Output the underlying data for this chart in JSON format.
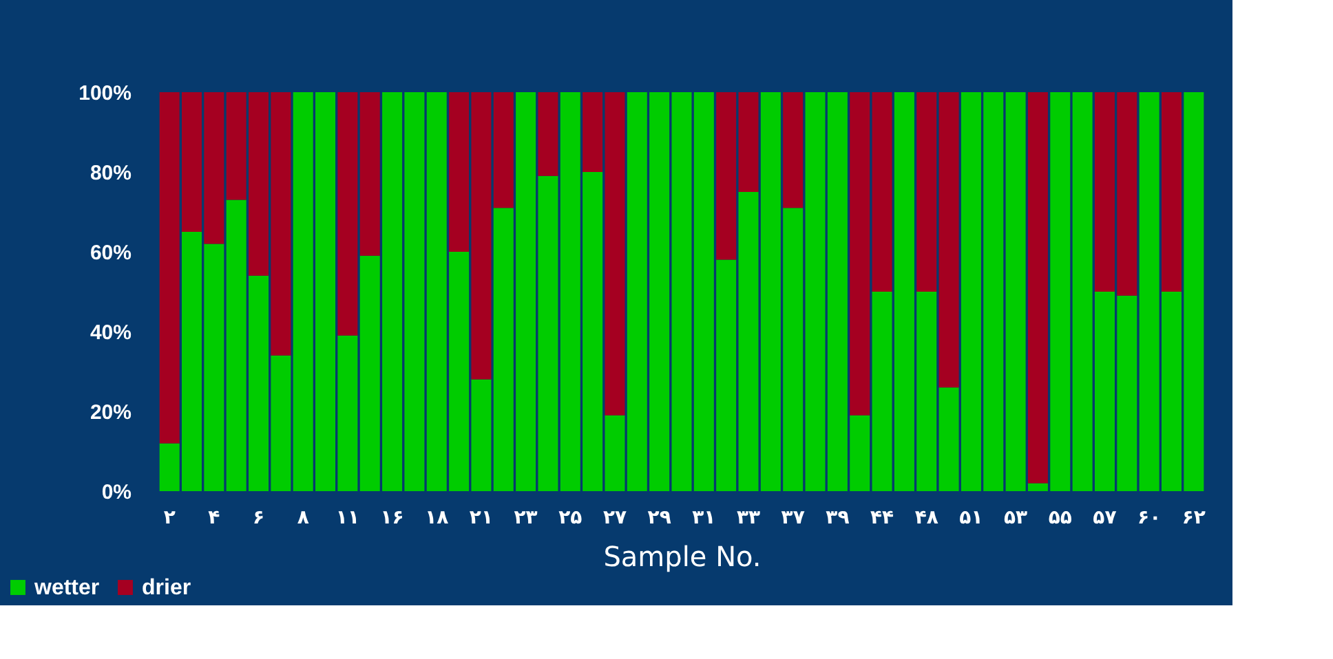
{
  "chart_data": {
    "type": "bar",
    "stacked": true,
    "xlabel": "Sample No.",
    "categories": [
      "۲",
      null,
      "۴",
      null,
      "۶",
      null,
      "۸",
      null,
      "۱۱",
      null,
      "۱۶",
      null,
      "۱۸",
      null,
      "۲۱",
      null,
      "۲۳",
      null,
      "۲۵",
      null,
      "۲۷",
      null,
      "۲۹",
      null,
      "۳۱",
      null,
      "۳۳",
      null,
      "۳۷",
      null,
      "۳۹",
      null,
      "۴۴",
      null,
      "۴۸",
      null,
      "۵۱",
      null,
      "۵۳",
      null,
      "۵۵",
      null,
      "۵۷",
      null,
      "۶۰",
      null,
      "۶۲"
    ],
    "series": [
      {
        "name": "wetter",
        "color": "#00cc00",
        "values": [
          12,
          65,
          62,
          73,
          54,
          34,
          100,
          100,
          39,
          59,
          100,
          100,
          100,
          60,
          28,
          71,
          100,
          79,
          100,
          80,
          19,
          100,
          100,
          100,
          100,
          58,
          75,
          100,
          71,
          100,
          100,
          19,
          50,
          100,
          50,
          26,
          100,
          100,
          100,
          2,
          100,
          100,
          50,
          49,
          100,
          50,
          100
        ]
      },
      {
        "name": "drier",
        "color": "#a50021",
        "values": [
          88,
          35,
          38,
          27,
          46,
          66,
          0,
          0,
          61,
          41,
          0,
          0,
          0,
          40,
          72,
          29,
          0,
          21,
          0,
          20,
          81,
          0,
          0,
          0,
          0,
          42,
          25,
          0,
          29,
          0,
          0,
          81,
          50,
          0,
          50,
          74,
          0,
          0,
          0,
          98,
          0,
          0,
          50,
          51,
          0,
          50,
          0
        ]
      }
    ],
    "ylim": [
      0,
      100
    ],
    "yticks": [
      {
        "value": 0,
        "label": "0%"
      },
      {
        "value": 20,
        "label": "20%"
      },
      {
        "value": 40,
        "label": "40%"
      },
      {
        "value": 60,
        "label": "60%"
      },
      {
        "value": 80,
        "label": "80%"
      },
      {
        "value": 100,
        "label": "100%"
      }
    ],
    "grid": false,
    "legend": "bottom left"
  }
}
